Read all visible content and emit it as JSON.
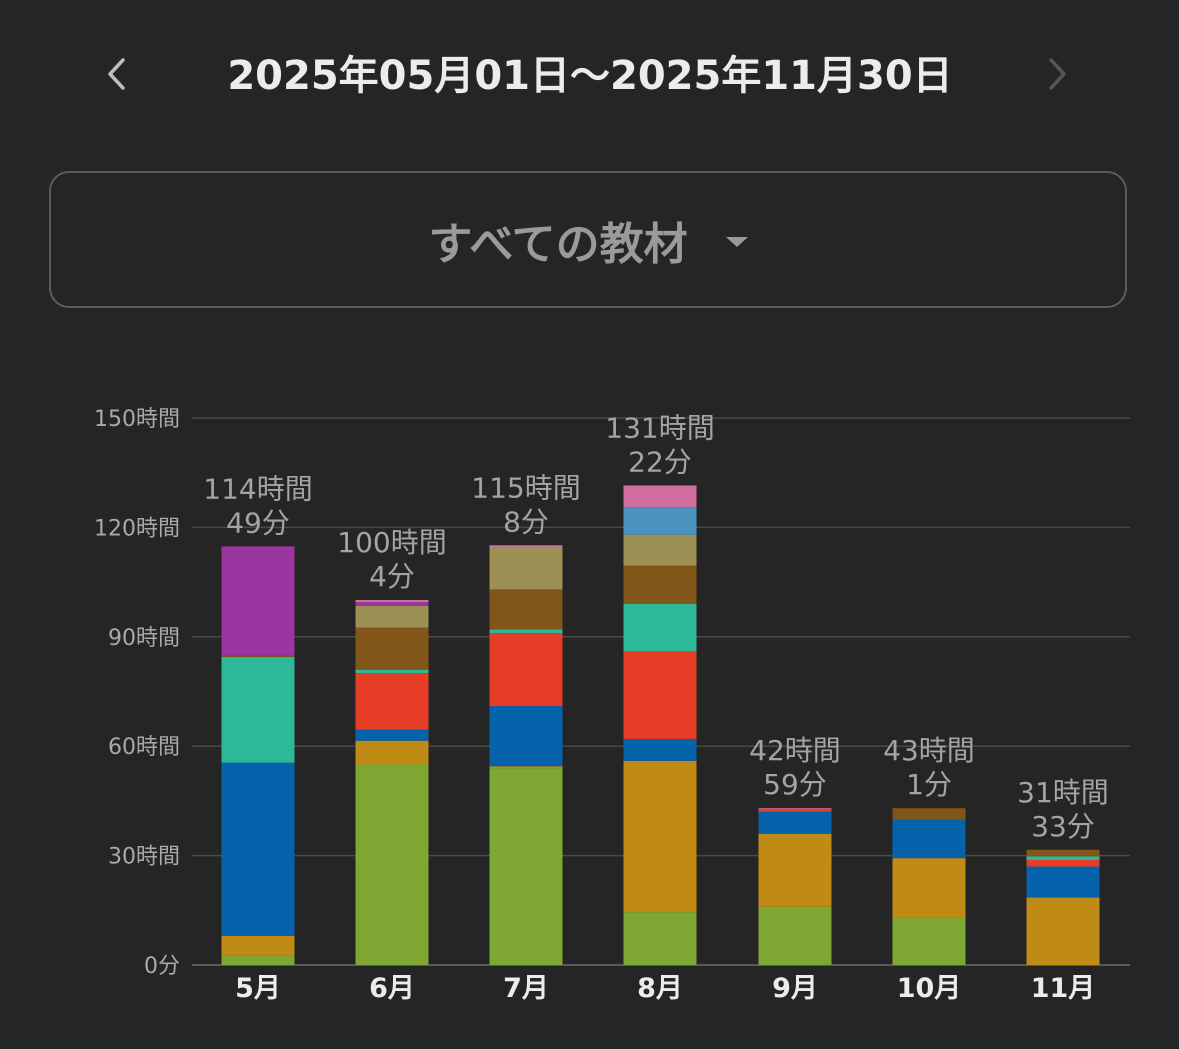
{
  "header": {
    "date_range": "2025年05月01日～2025年11月30日",
    "prev_icon": "chevron-left-icon",
    "next_icon": "chevron-right-icon"
  },
  "selector": {
    "label": "すべての教材",
    "icon": "caret-down-icon"
  },
  "colors": {
    "green": "#7ea833",
    "orange": "#bf8b14",
    "blue": "#0563ab",
    "red": "#e63d27",
    "teal": "#2db89a",
    "brown": "#825518",
    "khaki": "#9c9055",
    "purple": "#9b35a0",
    "skyblue": "#4a93be",
    "pink": "#cf6e9f"
  },
  "chart_data": {
    "type": "bar",
    "stacked": true,
    "unit": "hours",
    "categories": [
      "5月",
      "6月",
      "7月",
      "8月",
      "9月",
      "10月",
      "11月"
    ],
    "y_ticks": [
      {
        "value": 0,
        "label": "0分"
      },
      {
        "value": 30,
        "label": "30時間"
      },
      {
        "value": 60,
        "label": "60時間"
      },
      {
        "value": 90,
        "label": "90時間"
      },
      {
        "value": 120,
        "label": "120時間"
      },
      {
        "value": 150,
        "label": "150時間"
      }
    ],
    "ylim": [
      0,
      150
    ],
    "grid": true,
    "totals": [
      [
        "114時間",
        "49分"
      ],
      [
        "100時間",
        "4分"
      ],
      [
        "115時間",
        "8分"
      ],
      [
        "131時間",
        "22分"
      ],
      [
        "42時間",
        "59分"
      ],
      [
        "43時間",
        "1分"
      ],
      [
        "31時間",
        "33分"
      ]
    ],
    "series": [
      {
        "color": "#7ea833",
        "values": [
          2.5,
          55,
          54,
          14.5,
          16,
          13,
          0
        ]
      },
      {
        "color": "#bf8b14",
        "values": [
          5.5,
          6.5,
          0.5,
          41.5,
          20,
          16.3,
          18.5
        ]
      },
      {
        "color": "#0563ab",
        "values": [
          47.5,
          3,
          16.5,
          6,
          6,
          10.5,
          8.5
        ]
      },
      {
        "color": "#e63d27",
        "values": [
          0,
          15.5,
          20,
          24,
          0.7,
          0,
          1.8
        ]
      },
      {
        "color": "#2db89a",
        "values": [
          29,
          1,
          1,
          13,
          0,
          0,
          1
        ]
      },
      {
        "color": "#825518",
        "values": [
          0.5,
          11.5,
          11,
          10.5,
          0,
          3.2,
          1.8
        ]
      },
      {
        "color": "#9c9055",
        "values": [
          0,
          6,
          11.5,
          8.5,
          0,
          0,
          0
        ]
      },
      {
        "color": "#9b35a0",
        "values": [
          29.8,
          1,
          0,
          0,
          0,
          0,
          0
        ]
      },
      {
        "color": "#4a93be",
        "values": [
          0,
          0,
          0,
          7.5,
          0,
          0,
          0
        ]
      },
      {
        "color": "#cf6e9f",
        "values": [
          0,
          0.6,
          0.6,
          6,
          0.3,
          0,
          0
        ]
      }
    ]
  }
}
